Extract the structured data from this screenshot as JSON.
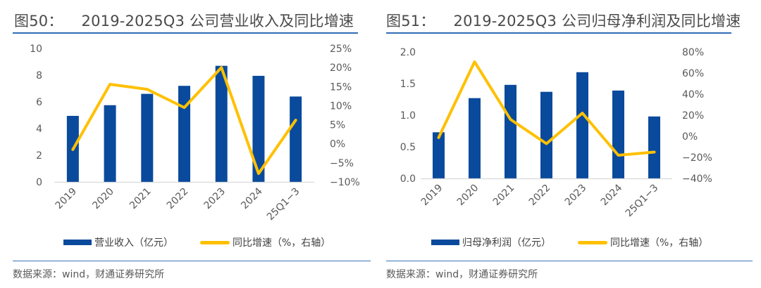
{
  "colors": {
    "bar": "#0a4a9c",
    "line": "#ffc000",
    "accent_rule": "#2e6db4",
    "axis": "#d9d9d9"
  },
  "left": {
    "title_num": "图50：",
    "title_text": "2019-2025Q3 公司营业收入及同比增速",
    "legend_bar": "营业收入（亿元）",
    "legend_line": "同比增速（%，右轴）",
    "source": "数据来源：wind，财通证券研究所"
  },
  "right": {
    "title_num": "图51：",
    "title_text": "2019-2025Q3 公司归母净利润及同比增速",
    "legend_bar": "归母净利润（亿元）",
    "legend_line": "同比增速（%，右轴）",
    "source": "数据来源：wind，财通证券研究所"
  },
  "chart_data": [
    {
      "type": "bar",
      "title": "2019-2025Q3 公司营业收入及同比增速",
      "categories": [
        "2019",
        "2020",
        "2021",
        "2022",
        "2023",
        "2024",
        "25Q1-3"
      ],
      "series": [
        {
          "name": "营业收入（亿元）",
          "type": "bar",
          "axis": "left",
          "values": [
            4.95,
            5.75,
            6.6,
            7.2,
            8.7,
            7.95,
            6.4
          ]
        },
        {
          "name": "同比增速（%，右轴）",
          "type": "line",
          "axis": "right",
          "values": [
            -1.5,
            15.6,
            14.3,
            9.5,
            20.0,
            -7.8,
            6.2
          ]
        }
      ],
      "y_left": {
        "min": 0,
        "max": 10,
        "ticks": [
          "0",
          "2",
          "4",
          "6",
          "8",
          "10"
        ]
      },
      "y_right": {
        "min": -10,
        "max": 25,
        "ticks": [
          "-10%",
          "-5%",
          "0%",
          "5%",
          "10%",
          "15%",
          "20%",
          "25%"
        ]
      },
      "grid": false,
      "legend": "bottom"
    },
    {
      "type": "bar",
      "title": "2019-2025Q3 公司归母净利润及同比增速",
      "categories": [
        "2019",
        "2020",
        "2021",
        "2022",
        "2023",
        "2024",
        "25Q1-3"
      ],
      "series": [
        {
          "name": "归母净利润（亿元）",
          "type": "bar",
          "axis": "left",
          "values": [
            0.73,
            1.27,
            1.48,
            1.37,
            1.68,
            1.39,
            0.98
          ]
        },
        {
          "name": "同比增速（%，右轴）",
          "type": "line",
          "axis": "right",
          "values": [
            -1.3,
            70.7,
            16.0,
            -7.0,
            22.0,
            -18.0,
            -15.0
          ]
        }
      ],
      "y_left": {
        "min": 0,
        "max": 2,
        "ticks": [
          "0.0",
          "0.5",
          "1.0",
          "1.5",
          "2.0"
        ]
      },
      "y_right": {
        "min": -40,
        "max": 80,
        "ticks": [
          "-40%",
          "-20%",
          "0%",
          "20%",
          "40%",
          "60%",
          "80%"
        ]
      },
      "grid": false,
      "legend": "bottom"
    }
  ]
}
